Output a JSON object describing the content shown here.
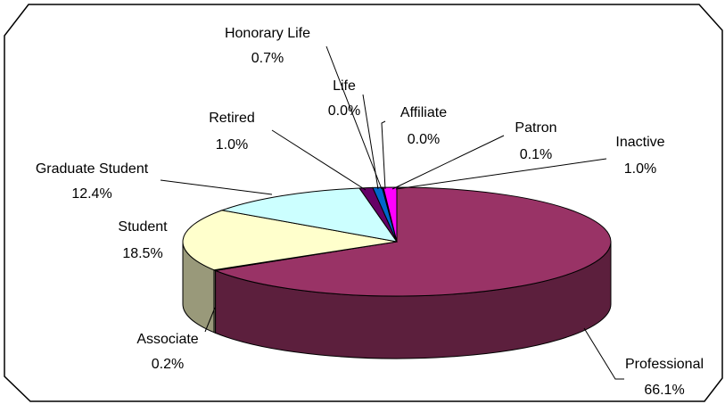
{
  "chart_data": {
    "type": "pie3d",
    "categories": [
      "Professional",
      "Associate",
      "Student",
      "Graduate Student",
      "Retired",
      "Life",
      "Honorary Life",
      "Affiliate",
      "Patron",
      "Inactive"
    ],
    "values": [
      66.1,
      0.2,
      18.5,
      12.4,
      1.0,
      0.0,
      0.7,
      0.0,
      0.1,
      1.0
    ],
    "value_labels": [
      "66.1%",
      "0.2%",
      "18.5%",
      "12.4%",
      "1.0%",
      "0.0%",
      "0.7%",
      "0.0%",
      "0.1%",
      "1.0%"
    ],
    "colors": [
      "#993366",
      "#d6d6aa",
      "#ffffcc",
      "#ccffff",
      "#660066",
      "#ff8080",
      "#0066cc",
      "#ccccff",
      "#000080",
      "#ff00ff"
    ]
  }
}
